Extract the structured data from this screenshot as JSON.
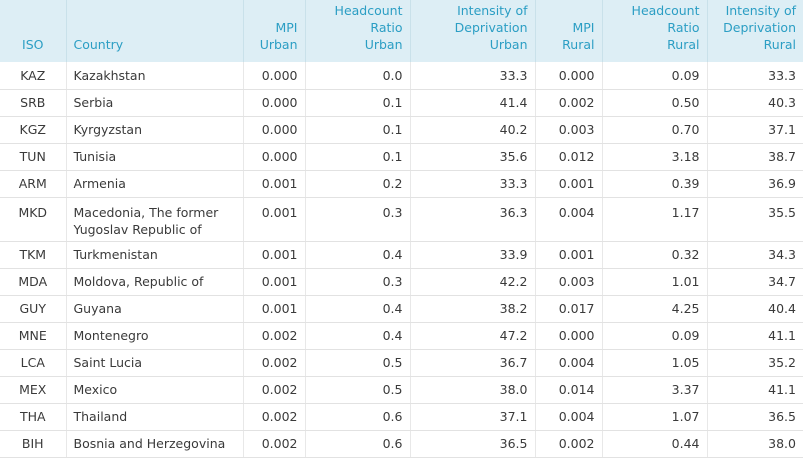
{
  "table": {
    "headers": [
      {
        "key": "iso",
        "lines": [
          "ISO"
        ],
        "align": "center"
      },
      {
        "key": "country",
        "lines": [
          "Country"
        ],
        "align": "left"
      },
      {
        "key": "mpi_urban",
        "lines": [
          "MPI",
          "Urban"
        ],
        "align": "right"
      },
      {
        "key": "hc_urban",
        "lines": [
          "Headcount",
          "Ratio",
          "Urban"
        ],
        "align": "right"
      },
      {
        "key": "id_urban",
        "lines": [
          "Intensity of",
          "Deprivation",
          "Urban"
        ],
        "align": "right"
      },
      {
        "key": "mpi_rural",
        "lines": [
          "MPI",
          "Rural"
        ],
        "align": "right"
      },
      {
        "key": "hc_rural",
        "lines": [
          "Headcount",
          "Ratio",
          "Rural"
        ],
        "align": "right"
      },
      {
        "key": "id_rural",
        "lines": [
          "Intensity of",
          "Deprivation",
          "Rural"
        ],
        "align": "right"
      }
    ],
    "rows": [
      [
        "KAZ",
        "Kazakhstan",
        "0.000",
        "0.0",
        "33.3",
        "0.000",
        "0.09",
        "33.3"
      ],
      [
        "SRB",
        "Serbia",
        "0.000",
        "0.1",
        "41.4",
        "0.002",
        "0.50",
        "40.3"
      ],
      [
        "KGZ",
        "Kyrgyzstan",
        "0.000",
        "0.1",
        "40.2",
        "0.003",
        "0.70",
        "37.1"
      ],
      [
        "TUN",
        "Tunisia",
        "0.000",
        "0.1",
        "35.6",
        "0.012",
        "3.18",
        "38.7"
      ],
      [
        "ARM",
        "Armenia",
        "0.001",
        "0.2",
        "33.3",
        "0.001",
        "0.39",
        "36.9"
      ],
      [
        "MKD",
        "Macedonia, The former Yugoslav Republic of",
        "0.001",
        "0.3",
        "36.3",
        "0.004",
        "1.17",
        "35.5"
      ],
      [
        "TKM",
        "Turkmenistan",
        "0.001",
        "0.4",
        "33.9",
        "0.001",
        "0.32",
        "34.3"
      ],
      [
        "MDA",
        "Moldova, Republic of",
        "0.001",
        "0.3",
        "42.2",
        "0.003",
        "1.01",
        "34.7"
      ],
      [
        "GUY",
        "Guyana",
        "0.001",
        "0.4",
        "38.2",
        "0.017",
        "4.25",
        "40.4"
      ],
      [
        "MNE",
        "Montenegro",
        "0.002",
        "0.4",
        "47.2",
        "0.000",
        "0.09",
        "41.1"
      ],
      [
        "LCA",
        "Saint Lucia",
        "0.002",
        "0.5",
        "36.7",
        "0.004",
        "1.05",
        "35.2"
      ],
      [
        "MEX",
        "Mexico",
        "0.002",
        "0.5",
        "38.0",
        "0.014",
        "3.37",
        "41.1"
      ],
      [
        "THA",
        "Thailand",
        "0.002",
        "0.6",
        "37.1",
        "0.004",
        "1.07",
        "36.5"
      ],
      [
        "BIH",
        "Bosnia and Herzegovina",
        "0.002",
        "0.6",
        "36.5",
        "0.002",
        "0.44",
        "38.0"
      ]
    ]
  }
}
